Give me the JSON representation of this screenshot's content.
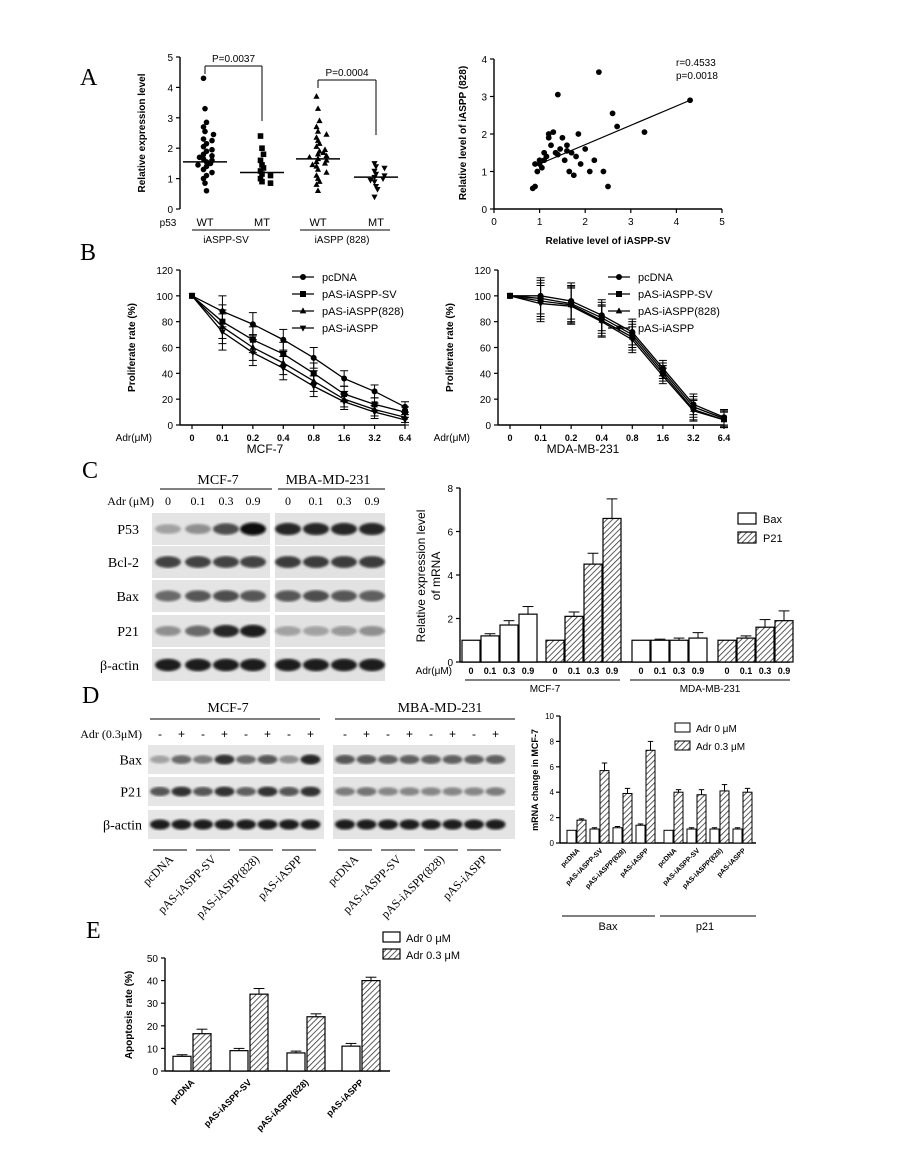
{
  "panels": {
    "A_letter": "A",
    "B_letter": "B",
    "C_letter": "C",
    "D_letter": "D",
    "E_letter": "E"
  },
  "chart_data": [
    {
      "id": "A-left",
      "type": "scatter",
      "ylabel": "Relative expression level",
      "ylim": [
        0,
        5
      ],
      "yticks": [
        "0",
        "1",
        "2",
        "3",
        "4",
        "5"
      ],
      "row_label": "p53",
      "categories": [
        "WT",
        "MT",
        "WT",
        "MT"
      ],
      "groups": [
        "iASPP-SV",
        "iASPP (828)"
      ],
      "pvalues": [
        "P=0.0037",
        "P=0.0004"
      ],
      "medians": [
        1.55,
        1.2,
        1.65,
        1.05
      ],
      "points": [
        [
          4.3,
          3.3,
          2.85,
          2.7,
          2.55,
          2.45,
          2.3,
          2.25,
          2.15,
          2.05,
          1.95,
          1.9,
          1.8,
          1.75,
          1.7,
          1.65,
          1.6,
          1.55,
          1.5,
          1.45,
          1.4,
          1.3,
          1.2,
          1.1,
          1.0,
          0.85,
          0.6
        ],
        [
          2.4,
          2.0,
          1.8,
          1.6,
          1.45,
          1.35,
          1.25,
          1.15,
          1.1,
          1.0,
          0.9,
          0.85
        ],
        [
          3.7,
          3.3,
          2.9,
          2.7,
          2.55,
          2.45,
          2.35,
          2.25,
          2.15,
          2.05,
          1.95,
          1.9,
          1.85,
          1.8,
          1.75,
          1.7,
          1.65,
          1.6,
          1.55,
          1.5,
          1.45,
          1.4,
          1.3,
          1.2,
          1.1,
          1.0,
          0.9,
          0.8,
          0.6
        ],
        [
          1.5,
          1.4,
          1.35,
          1.25,
          1.15,
          1.1,
          1.05,
          1.0,
          0.95,
          0.9,
          0.75,
          0.65,
          0.4
        ]
      ]
    },
    {
      "id": "A-right",
      "type": "scatter",
      "xlabel": "Relative level of iASPP-SV",
      "ylabel": "Relative level of iASPP (828)",
      "xlim": [
        0,
        5
      ],
      "ylim": [
        0,
        4
      ],
      "xticks": [
        "0",
        "1",
        "2",
        "3",
        "4",
        "5"
      ],
      "yticks": [
        "0",
        "1",
        "2",
        "3",
        "4"
      ],
      "annotation": [
        "r=0.4533",
        "p=0.0018"
      ],
      "fit": {
        "x": [
          0.9,
          4.3
        ],
        "y": [
          1.15,
          2.9
        ]
      },
      "x": [
        0.85,
        0.9,
        0.95,
        1.0,
        1.05,
        1.1,
        1.15,
        1.2,
        1.25,
        1.3,
        1.35,
        1.4,
        1.45,
        1.5,
        1.55,
        1.6,
        1.65,
        1.7,
        1.75,
        1.8,
        1.85,
        1.9,
        2.0,
        2.1,
        2.2,
        2.3,
        2.4,
        2.5,
        2.6,
        2.7,
        3.3,
        4.3,
        1.0,
        1.2,
        1.4,
        1.6,
        0.9,
        1.1
      ],
      "y": [
        0.55,
        0.6,
        1.0,
        1.3,
        1.1,
        1.5,
        1.4,
        1.9,
        1.7,
        2.05,
        1.5,
        3.05,
        1.6,
        1.9,
        1.3,
        1.7,
        1.0,
        1.5,
        0.9,
        1.4,
        2.0,
        1.2,
        1.6,
        1.0,
        1.3,
        3.65,
        1.0,
        0.6,
        2.55,
        2.2,
        2.05,
        2.9,
        1.2,
        2.0,
        1.45,
        1.55,
        1.2,
        1.3
      ]
    },
    {
      "id": "B-left",
      "type": "line",
      "title": "MCF-7",
      "xlabel_prefix": "Adr(μM)",
      "ylabel": "Proliferate rate (%)",
      "ylim": [
        0,
        120
      ],
      "yticks": [
        "0",
        "20",
        "40",
        "60",
        "80",
        "100",
        "120"
      ],
      "categories": [
        "0",
        "0.1",
        "0.2",
        "0.4",
        "0.8",
        "1.6",
        "3.2",
        "6.4"
      ],
      "legend": "top-right",
      "series": [
        {
          "name": "pcDNA",
          "marker": "circle",
          "values": [
            100,
            88,
            78,
            66,
            52,
            36,
            26,
            14
          ],
          "err": [
            0,
            12,
            9,
            8,
            8,
            6,
            5,
            4
          ]
        },
        {
          "name": "pAS-iASPP-SV",
          "marker": "square",
          "values": [
            100,
            80,
            66,
            55,
            40,
            24,
            16,
            10
          ],
          "err": [
            0,
            13,
            10,
            9,
            8,
            6,
            5,
            4
          ]
        },
        {
          "name": "pAS-iASPP(828)",
          "marker": "triangle",
          "values": [
            100,
            76,
            60,
            48,
            34,
            20,
            12,
            6
          ],
          "err": [
            0,
            13,
            10,
            9,
            8,
            6,
            5,
            4
          ]
        },
        {
          "name": "pAS-iASPP",
          "marker": "triangle-down",
          "values": [
            100,
            72,
            56,
            44,
            30,
            18,
            10,
            4
          ],
          "err": [
            0,
            14,
            10,
            9,
            8,
            6,
            5,
            4
          ]
        }
      ]
    },
    {
      "id": "B-right",
      "type": "line",
      "title": "MDA-MB-231",
      "xlabel_prefix": "Adr(μM)",
      "ylabel": "Proliferate rate (%)",
      "ylim": [
        0,
        120
      ],
      "yticks": [
        "0",
        "20",
        "40",
        "60",
        "80",
        "100",
        "120"
      ],
      "categories": [
        "0",
        "0.1",
        "0.2",
        "0.4",
        "0.8",
        "1.6",
        "3.2",
        "6.4"
      ],
      "legend": "top-right",
      "series": [
        {
          "name": "pcDNA",
          "marker": "circle",
          "values": [
            100,
            100,
            96,
            85,
            72,
            44,
            16,
            6
          ],
          "err": [
            0,
            14,
            14,
            12,
            10,
            6,
            8,
            6
          ]
        },
        {
          "name": "pAS-iASPP-SV",
          "marker": "square",
          "values": [
            100,
            98,
            94,
            83,
            70,
            42,
            14,
            5
          ],
          "err": [
            0,
            14,
            14,
            12,
            10,
            6,
            8,
            6
          ]
        },
        {
          "name": "pAS-iASPP(828)",
          "marker": "triangle",
          "values": [
            100,
            96,
            93,
            81,
            68,
            40,
            12,
            4
          ],
          "err": [
            0,
            14,
            14,
            12,
            10,
            6,
            8,
            6
          ]
        },
        {
          "name": "pAS-iASPP",
          "marker": "triangle-down",
          "values": [
            100,
            94,
            92,
            80,
            66,
            38,
            11,
            4
          ],
          "err": [
            0,
            14,
            14,
            12,
            10,
            6,
            8,
            6
          ]
        }
      ]
    },
    {
      "id": "C-right",
      "type": "bar",
      "ylabel": "Relative expression level of mRNA",
      "ylabel_lines": [
        "Relative expression level",
        "of mRNA"
      ],
      "xlabel_prefix": "Adr(μM)",
      "ylim": [
        0,
        8
      ],
      "yticks": [
        "0",
        "2",
        "4",
        "6",
        "8"
      ],
      "categories": [
        "0",
        "0.1",
        "0.3",
        "0.9"
      ],
      "groups": [
        "MCF-7",
        "MDA-MB-231"
      ],
      "legend": "top-right",
      "series": [
        {
          "name": "Bax",
          "pattern": "open",
          "mcf7": [
            1.0,
            1.2,
            1.7,
            2.2
          ],
          "mcf7_err": [
            0,
            0.1,
            0.2,
            0.35
          ],
          "mda": [
            1.0,
            1.0,
            1.0,
            1.1
          ],
          "mda_err": [
            0,
            0.05,
            0.1,
            0.25
          ]
        },
        {
          "name": "P21",
          "pattern": "hatched",
          "mcf7": [
            1.0,
            2.1,
            4.5,
            6.6
          ],
          "mcf7_err": [
            0,
            0.2,
            0.5,
            0.9
          ],
          "mda": [
            1.0,
            1.1,
            1.6,
            1.9
          ],
          "mda_err": [
            0,
            0.1,
            0.35,
            0.45
          ]
        }
      ]
    },
    {
      "id": "D-right",
      "type": "bar",
      "ylabel": "mRNA change in MCF-7",
      "ylim": [
        0,
        10
      ],
      "yticks": [
        "0",
        "2",
        "4",
        "6",
        "8",
        "10"
      ],
      "categories": [
        "pcDNA",
        "pAS-iASPP-SV",
        "pAS-iASPP(828)",
        "pAS-iASPP"
      ],
      "groups": [
        "Bax",
        "p21"
      ],
      "legend": "top-right",
      "series": [
        {
          "name": "Adr 0 μM",
          "pattern": "open",
          "bax": [
            1.0,
            1.1,
            1.2,
            1.4
          ],
          "bax_err": [
            0,
            0.1,
            0.1,
            0.1
          ],
          "p21": [
            1.0,
            1.1,
            1.1,
            1.1
          ],
          "p21_err": [
            0,
            0.1,
            0.1,
            0.1
          ]
        },
        {
          "name": "Adr 0.3 μM",
          "pattern": "hatched",
          "bax": [
            1.8,
            5.7,
            3.9,
            7.3
          ],
          "bax_err": [
            0.1,
            0.6,
            0.4,
            0.7
          ],
          "p21": [
            4.0,
            3.8,
            4.1,
            4.0
          ],
          "p21_err": [
            0.2,
            0.4,
            0.5,
            0.3
          ]
        }
      ]
    },
    {
      "id": "E",
      "type": "bar",
      "ylabel": "Apoptosis rate (%)",
      "ylim": [
        0,
        50
      ],
      "yticks": [
        "0",
        "10",
        "20",
        "30",
        "40",
        "50"
      ],
      "categories": [
        "pcDNA",
        "pAS-iASPP-SV",
        "pAS-iASPP(828)",
        "pAS-iASPP"
      ],
      "legend": "top-right",
      "series": [
        {
          "name": "Adr 0 μM",
          "pattern": "open",
          "values": [
            6.5,
            9.0,
            8.0,
            11.0
          ],
          "err": [
            0.7,
            1.0,
            0.8,
            1.2
          ]
        },
        {
          "name": "Adr 0.3 μM",
          "pattern": "hatched",
          "values": [
            16.5,
            34.0,
            24.0,
            40.0
          ],
          "err": [
            2.0,
            2.5,
            1.3,
            1.5
          ]
        }
      ]
    }
  ],
  "blots": {
    "C": {
      "lines": [
        "MCF-7",
        "MBA-MD-231"
      ],
      "adr_label": "Adr (μM)",
      "doses": [
        "0",
        "0.1",
        "0.3",
        "0.9"
      ],
      "rows": [
        "P53",
        "Bcl-2",
        "Bax",
        "P21",
        "β-actin"
      ],
      "intensity_mcf7": [
        [
          0.2,
          0.3,
          0.65,
          1.0
        ],
        [
          0.7,
          0.7,
          0.7,
          0.7
        ],
        [
          0.5,
          0.6,
          0.65,
          0.6
        ],
        [
          0.3,
          0.5,
          0.85,
          0.9
        ],
        [
          0.9,
          0.9,
          0.9,
          0.9
        ]
      ],
      "intensity_mda": [
        [
          0.85,
          0.85,
          0.85,
          0.85
        ],
        [
          0.75,
          0.75,
          0.75,
          0.75
        ],
        [
          0.6,
          0.65,
          0.6,
          0.55
        ],
        [
          0.2,
          0.2,
          0.25,
          0.3
        ],
        [
          0.9,
          0.9,
          0.9,
          0.9
        ]
      ]
    },
    "D": {
      "lines": [
        "MCF-7",
        "MBA-MD-231"
      ],
      "adr_label": "Adr (0.3μM)",
      "signs": [
        "-",
        "+",
        "-",
        "+",
        "-",
        "+",
        "-",
        "+"
      ],
      "rows": [
        "Bax",
        "P21",
        "β-actin"
      ],
      "lanes": [
        "pcDNA",
        "pAS-iASPP-SV",
        "pAS-iASPP(828)",
        "pAS-iASPP"
      ],
      "intensity_mcf7": [
        [
          0.2,
          0.5,
          0.4,
          0.8,
          0.5,
          0.6,
          0.3,
          0.85
        ],
        [
          0.6,
          0.8,
          0.6,
          0.8,
          0.55,
          0.8,
          0.6,
          0.8
        ],
        [
          0.9,
          0.9,
          0.9,
          0.9,
          0.9,
          0.9,
          0.9,
          0.9
        ]
      ],
      "intensity_mda": [
        [
          0.6,
          0.6,
          0.55,
          0.55,
          0.55,
          0.55,
          0.55,
          0.55
        ],
        [
          0.4,
          0.45,
          0.35,
          0.35,
          0.35,
          0.35,
          0.35,
          0.4
        ],
        [
          0.9,
          0.9,
          0.9,
          0.9,
          0.9,
          0.9,
          0.9,
          0.9
        ]
      ]
    }
  }
}
